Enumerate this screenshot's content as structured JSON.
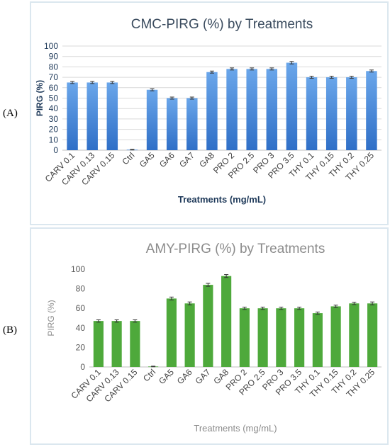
{
  "panels": [
    {
      "label": "(A)"
    },
    {
      "label": "(B)"
    }
  ],
  "chart_data": [
    {
      "type": "bar",
      "title": "CMC-PIRG (%) by Treatments",
      "xlabel": "Treatments (mg/mL)",
      "ylabel": "PIRG (%)",
      "ylim": [
        0,
        100
      ],
      "yticks": [
        0,
        10,
        20,
        30,
        40,
        50,
        60,
        70,
        80,
        90,
        100
      ],
      "grid": true,
      "legend": "none",
      "bar_color": "#2f6fc7",
      "bar_color_light": "#6aa6ea",
      "categories": [
        "CARV 0.1",
        "CARV 0.13",
        "CARV 0.15",
        "Ctrl",
        "GA5",
        "GA6",
        "GA7",
        "GA8",
        "PRO 2",
        "PRO 2.5",
        "PRO 3",
        "PRO 3.5",
        "THY 0.1",
        "THY 0.15",
        "THY 0.2",
        "THY 0.25"
      ],
      "values": [
        65,
        65,
        65,
        0.5,
        58,
        50,
        50,
        75,
        78,
        78,
        78,
        84,
        70,
        70,
        70,
        76
      ],
      "errors": [
        1,
        1,
        1,
        0.3,
        1,
        1,
        1,
        1,
        1,
        1,
        1,
        1.2,
        1,
        1,
        1,
        1
      ]
    },
    {
      "type": "bar",
      "title": "AMY-PIRG (%) by Treatments",
      "xlabel": "Treatments (mg/mL)",
      "ylabel": "PIRG (%)",
      "ylim": [
        0,
        100
      ],
      "yticks": [
        0,
        20,
        40,
        60,
        80,
        100
      ],
      "grid": false,
      "legend": "none",
      "bar_color": "#4ea93b",
      "categories": [
        "CARV 0.1",
        "CARV 0.13",
        "CARV 0.15",
        "Ctrl",
        "GA5",
        "GA6",
        "GA7",
        "GA8",
        "PRO 2",
        "PRO 2.5",
        "PRO 3",
        "PRO 3.5",
        "THY 0.1",
        "THY 0.15",
        "THY 0.2",
        "THY 0.25"
      ],
      "values": [
        47,
        47,
        47,
        0.5,
        70,
        65,
        84,
        93,
        60,
        60,
        60,
        60,
        55,
        62,
        65,
        65
      ],
      "errors": [
        1.2,
        1.2,
        1.2,
        0.3,
        1.5,
        1.5,
        1.5,
        1.5,
        1.2,
        1.2,
        1.2,
        1.2,
        1.2,
        1.2,
        1.2,
        1.5
      ]
    }
  ]
}
